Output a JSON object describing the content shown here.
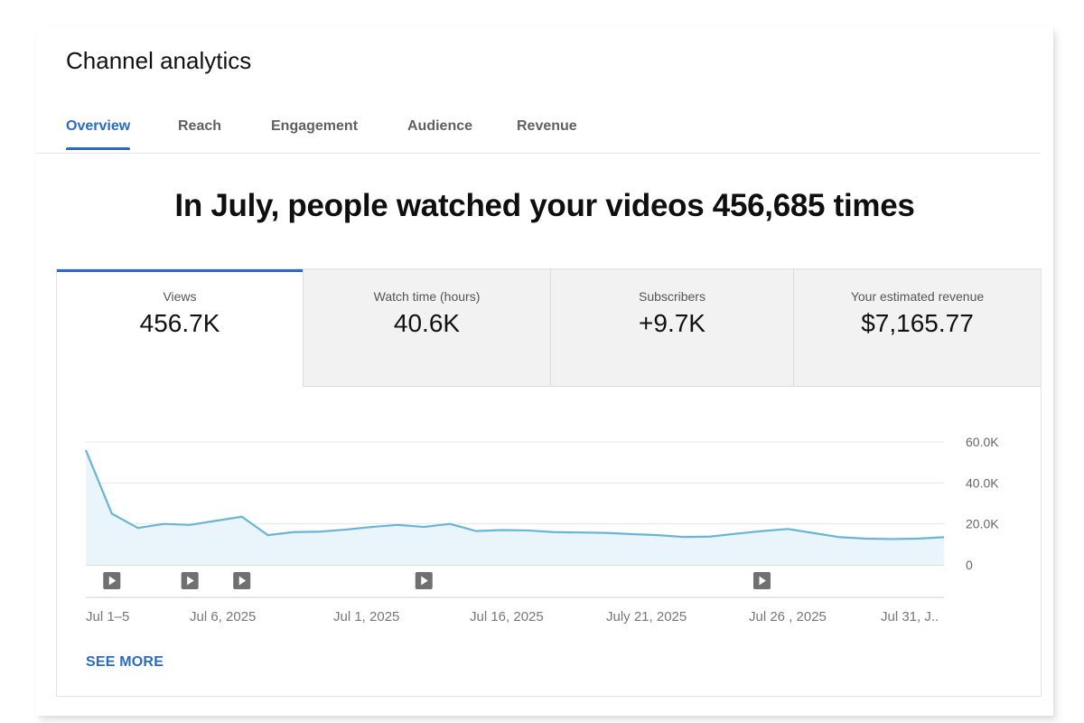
{
  "page": {
    "title": "Channel analytics"
  },
  "tabs": [
    {
      "label": "Overview",
      "active": true
    },
    {
      "label": "Reach",
      "active": false
    },
    {
      "label": "Engagement",
      "active": false
    },
    {
      "label": "Audience",
      "active": false
    },
    {
      "label": "Revenue",
      "active": false
    }
  ],
  "headline": "In July, people watched your videos 456,685 times",
  "metrics": [
    {
      "label": "Views",
      "value": "456.7K",
      "active": true
    },
    {
      "label": "Watch time (hours)",
      "value": "40.6K",
      "active": false
    },
    {
      "label": "Subscribers",
      "value": "+9.7K",
      "active": false
    },
    {
      "label": "Your estimated revenue",
      "value": "$7,165.77",
      "active": false
    }
  ],
  "see_more_label": "SEE MORE",
  "colors": {
    "accent": "#2b6ac4",
    "line": "#6ab4d6",
    "fill": "#e9f4fb"
  },
  "icons": {
    "video_marker": "play-icon"
  },
  "chart_data": {
    "type": "area",
    "series": [
      {
        "values": [
          56000,
          25000,
          18000,
          20000,
          19500,
          21500,
          23500,
          14500,
          16000,
          16200,
          17200,
          18500,
          19500,
          18500,
          20000,
          16500,
          17000,
          16800,
          16000,
          15800,
          15600,
          15000,
          14500,
          13600,
          13800,
          15200,
          16500,
          17500,
          15500,
          13500,
          12800,
          12600,
          12800,
          13500
        ]
      }
    ],
    "y_ticks": [
      "60.0K",
      "40.0K",
      "20.0K",
      "0"
    ],
    "ylim": [
      0,
      60000
    ],
    "x_ticks": [
      "Jul 1–5",
      "Jul 6, 2025",
      "Jul 1, 2025",
      "Jul 16, 2025",
      "July 21, 2025",
      "Jul 26 , 2025",
      "Jul 31, J.."
    ],
    "video_markers": [
      1,
      4,
      6,
      13,
      26
    ],
    "grid": true
  }
}
